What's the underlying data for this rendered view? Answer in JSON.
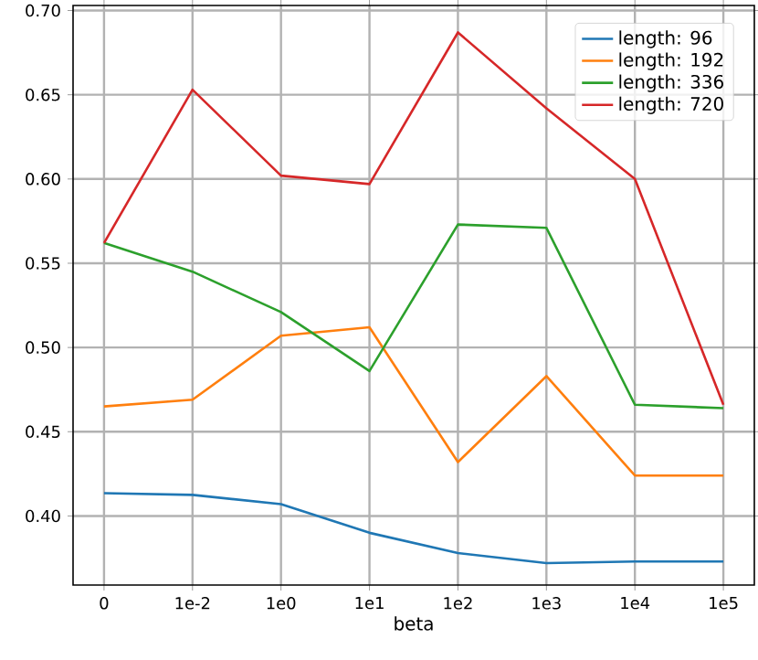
{
  "chart_data": {
    "type": "line",
    "xlabel": "beta",
    "categories": [
      "0",
      "1e-2",
      "1e0",
      "1e1",
      "1e2",
      "1e3",
      "1e4",
      "1e5"
    ],
    "ylim": [
      0.359,
      0.703
    ],
    "yticks": [
      {
        "value": 0.4,
        "label": "0.40"
      },
      {
        "value": 0.45,
        "label": "0.45"
      },
      {
        "value": 0.5,
        "label": "0.50"
      },
      {
        "value": 0.55,
        "label": "0.55"
      },
      {
        "value": 0.6,
        "label": "0.60"
      },
      {
        "value": 0.65,
        "label": "0.65"
      },
      {
        "value": 0.7,
        "label": "0.70"
      }
    ],
    "grid": true,
    "legend": "top right",
    "marker": "none",
    "line_style": "solid",
    "series": [
      {
        "name": "length: 96",
        "color": "#1f77b4",
        "values": [
          0.4135,
          0.4125,
          0.407,
          0.39,
          0.378,
          0.372,
          0.373,
          0.373
        ]
      },
      {
        "name": "length: 192",
        "color": "#ff7f0e",
        "values": [
          0.465,
          0.469,
          0.507,
          0.512,
          0.432,
          0.483,
          0.424,
          0.424
        ]
      },
      {
        "name": "length: 336",
        "color": "#2ca02c",
        "values": [
          0.562,
          0.545,
          0.521,
          0.486,
          0.573,
          0.571,
          0.466,
          0.464
        ]
      },
      {
        "name": "length: 720",
        "color": "#d62728",
        "values": [
          0.562,
          0.653,
          0.602,
          0.597,
          0.687,
          0.642,
          0.6,
          0.466
        ]
      }
    ]
  }
}
